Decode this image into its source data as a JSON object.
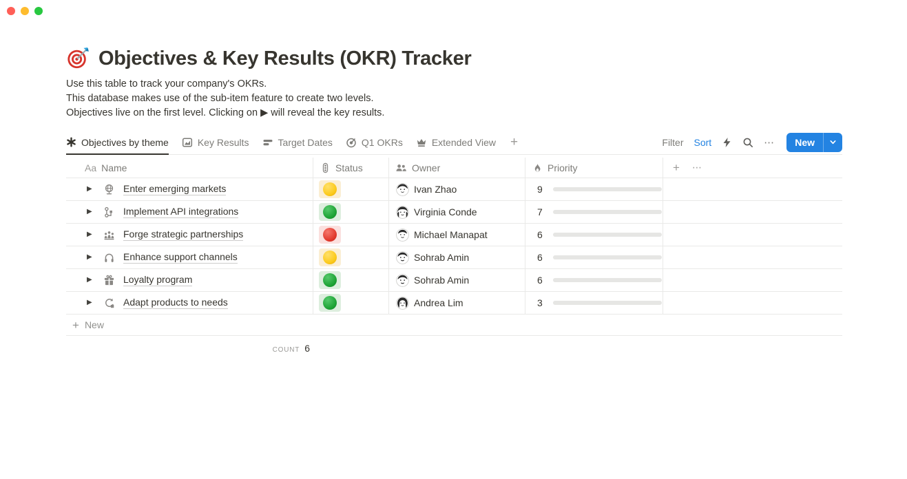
{
  "window": {
    "controls": [
      "close",
      "minimize",
      "zoom"
    ]
  },
  "header": {
    "icon": "dartboard-icon",
    "title": "Objectives & Key Results (OKR) Tracker",
    "description": [
      "Use this table to track your company's OKRs.",
      "This database makes use of the sub-item feature to create two levels.",
      "Objectives live on the first level. Clicking on ▶ will reveal the key results."
    ]
  },
  "toolbar": {
    "tabs": [
      {
        "label": "Objectives by theme",
        "icon": "asterisk-view-icon",
        "active": true
      },
      {
        "label": "Key Results",
        "icon": "chart-view-icon",
        "active": false
      },
      {
        "label": "Target Dates",
        "icon": "timeline-view-icon",
        "active": false
      },
      {
        "label": "Q1 OKRs",
        "icon": "target-view-icon",
        "active": false
      },
      {
        "label": "Extended View",
        "icon": "crown-view-icon",
        "active": false
      }
    ],
    "add_view": "+",
    "filter_label": "Filter",
    "sort_label": "Sort",
    "more_label": "⋯",
    "new_button": {
      "label": "New",
      "color": "#2383e2"
    }
  },
  "table": {
    "columns": [
      {
        "label": "Name",
        "icon": "text-icon",
        "icon_glyph": "Aa"
      },
      {
        "label": "Status",
        "icon": "status-traffic-icon"
      },
      {
        "label": "Owner",
        "icon": "people-icon"
      },
      {
        "label": "Priority",
        "icon": "flame-icon"
      }
    ],
    "add_column": "+",
    "column_more": "⋯",
    "priority_max": 10,
    "rows": [
      {
        "name": "Enter emerging markets",
        "icon": "globe-icon",
        "status": "yellow",
        "owner": "Ivan Zhao",
        "priority": 9
      },
      {
        "name": "Implement API integrations",
        "icon": "workflow-icon",
        "status": "green",
        "owner": "Virginia Conde",
        "priority": 7
      },
      {
        "name": "Forge strategic partnerships",
        "icon": "partnership-icon",
        "status": "red",
        "owner": "Michael Manapat",
        "priority": 6
      },
      {
        "name": "Enhance support channels",
        "icon": "headphones-icon",
        "status": "yellow",
        "owner": "Sohrab Amin",
        "priority": 6
      },
      {
        "name": "Loyalty program",
        "icon": "gift-icon",
        "status": "green",
        "owner": "Sohrab Amin",
        "priority": 6
      },
      {
        "name": "Adapt products to needs",
        "icon": "sync-icon",
        "status": "green",
        "owner": "Andrea Lim",
        "priority": 3
      }
    ],
    "new_row_label": "New",
    "footer": {
      "count_label": "COUNT",
      "count_value": "6"
    }
  },
  "colors": {
    "accent_blue": "#2383e2",
    "status_yellow": "#fcca1c",
    "status_green": "#1fa436",
    "status_red": "#e23a2e",
    "progress_green": "#4d7e64",
    "row_border": "#e9e9e7"
  }
}
